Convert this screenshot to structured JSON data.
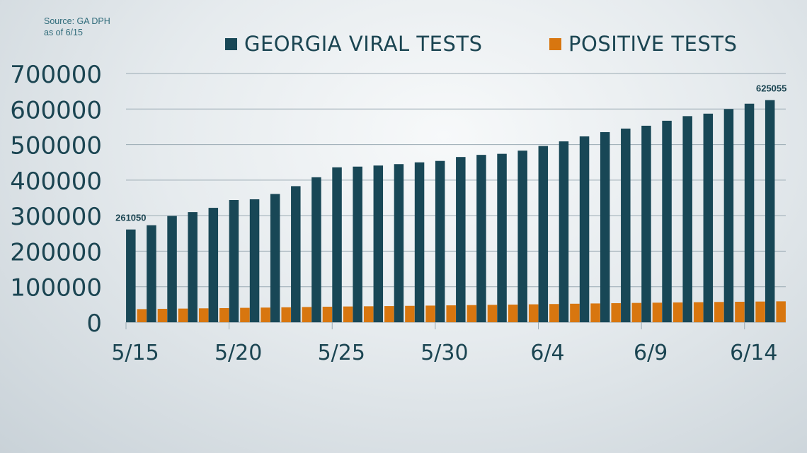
{
  "source": {
    "line1": "Source: GA DPH",
    "line2": "as of 6/15"
  },
  "colors": {
    "viral": "#184756",
    "positive": "#d8760f",
    "text": "#1b4552",
    "grid": "#9aaab3",
    "source_text": "#2f6b7a"
  },
  "chart_data": {
    "type": "bar",
    "title": "",
    "xlabel": "",
    "ylabel": "",
    "ylim": [
      0,
      700000
    ],
    "yticks": [
      0,
      100000,
      200000,
      300000,
      400000,
      500000,
      600000,
      700000
    ],
    "grid": true,
    "legend_position": "top",
    "categories": [
      "5/15",
      "5/16",
      "5/17",
      "5/18",
      "5/19",
      "5/20",
      "5/21",
      "5/22",
      "5/23",
      "5/24",
      "5/25",
      "5/26",
      "5/27",
      "5/28",
      "5/29",
      "5/30",
      "5/31",
      "6/1",
      "6/2",
      "6/3",
      "6/4",
      "6/5",
      "6/6",
      "6/7",
      "6/8",
      "6/9",
      "6/10",
      "6/11",
      "6/12",
      "6/13",
      "6/14",
      "6/15"
    ],
    "xtick_labels": [
      {
        "index": 0,
        "label": "5/15"
      },
      {
        "index": 5,
        "label": "5/20"
      },
      {
        "index": 10,
        "label": "5/25"
      },
      {
        "index": 15,
        "label": "5/30"
      },
      {
        "index": 20,
        "label": "6/4"
      },
      {
        "index": 25,
        "label": "6/9"
      },
      {
        "index": 30,
        "label": "6/14"
      }
    ],
    "series": [
      {
        "name": "GEORGIA VIRAL TESTS",
        "color": "#184756",
        "values": [
          261050,
          273000,
          299000,
          310000,
          322000,
          344000,
          346000,
          361000,
          383000,
          408000,
          436000,
          438000,
          441000,
          445000,
          450000,
          454000,
          465000,
          471000,
          474000,
          483000,
          496000,
          509000,
          523000,
          535000,
          545000,
          553000,
          567000,
          580000,
          587000,
          600000,
          615000,
          625055
        ]
      },
      {
        "name": "POSITIVE TESTS",
        "color": "#d8760f",
        "values": [
          37000,
          37800,
          38500,
          39200,
          39800,
          40600,
          41300,
          42100,
          42900,
          43700,
          44400,
          45000,
          45600,
          46200,
          46900,
          47600,
          48300,
          49000,
          49700,
          50500,
          51300,
          52100,
          52900,
          53700,
          54400,
          55100,
          55800,
          56500,
          57100,
          57700,
          58300,
          58900
        ]
      }
    ],
    "annotations": [
      {
        "series": 0,
        "index": 0,
        "text": "261050"
      },
      {
        "series": 0,
        "index": 31,
        "text": "625055"
      }
    ]
  }
}
